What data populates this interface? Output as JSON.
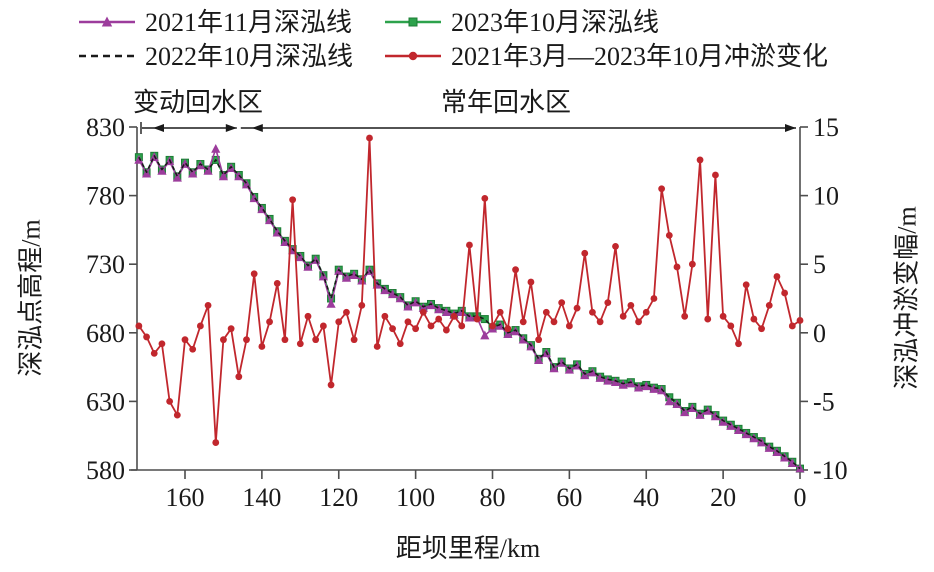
{
  "figure": {
    "background": "#ffffff",
    "text_color": "#1a1a1a",
    "axis_color": "#4d4d4d",
    "zones": {
      "left_label": "变动回水区",
      "right_label": "常年回水区",
      "boundary_km": 146
    },
    "axes": {
      "x": {
        "title": "距坝里程/km",
        "ticks": [
          160,
          140,
          120,
          100,
          80,
          60,
          40,
          20,
          0
        ],
        "range_km": [
          172.5,
          0
        ],
        "reversed": true
      },
      "y_left": {
        "title": "深泓点高程/m",
        "ticks": [
          830,
          780,
          730,
          680,
          630,
          580
        ],
        "range": [
          580,
          830
        ]
      },
      "y_right": {
        "title": "深泓冲淤变幅/m",
        "ticks": [
          15,
          10,
          5,
          0,
          -5,
          -10
        ],
        "range": [
          -10,
          15
        ]
      }
    }
  },
  "chart_data": {
    "type": "line",
    "title": "",
    "xlabel": "距坝里程/km",
    "ylabel_left": "深泓点高程/m",
    "ylabel_right": "深泓冲淤变幅/m",
    "xlim": [
      172.5,
      0
    ],
    "ylim_left": [
      580,
      830
    ],
    "ylim_right": [
      -10,
      15
    ],
    "grid": false,
    "legend_position": "top-left",
    "annotations": [
      "变动回水区",
      "常年回水区"
    ],
    "x": [
      172,
      170,
      168,
      166,
      164,
      162,
      160,
      158,
      156,
      154,
      152,
      150,
      148,
      146,
      144,
      142,
      140,
      138,
      136,
      134,
      132,
      130,
      128,
      126,
      124,
      122,
      120,
      118,
      116,
      114,
      112,
      110,
      108,
      106,
      104,
      102,
      100,
      98,
      96,
      94,
      92,
      90,
      88,
      86,
      84,
      82,
      80,
      78,
      76,
      74,
      72,
      70,
      68,
      66,
      64,
      62,
      60,
      58,
      56,
      54,
      52,
      50,
      48,
      46,
      44,
      42,
      40,
      38,
      36,
      34,
      32,
      30,
      28,
      26,
      24,
      22,
      20,
      18,
      16,
      14,
      12,
      10,
      8,
      6,
      4,
      2,
      0
    ],
    "series": [
      {
        "name": "2023年10月深泓线",
        "axis": "left",
        "color": "#2da24c",
        "marker_edge": "#1c7c35",
        "marker": "square",
        "line": "solid",
        "values": [
          808,
          797,
          809,
          799,
          806,
          794,
          804,
          797,
          803,
          799,
          806,
          795,
          801,
          795,
          789,
          779,
          771,
          763,
          754,
          747,
          741,
          736,
          729,
          734,
          722,
          705,
          726,
          721,
          723,
          719,
          726,
          716,
          712,
          709,
          706,
          700,
          703,
          699,
          701,
          698,
          696,
          694,
          696,
          692,
          692,
          690,
          684,
          686,
          680,
          682,
          676,
          671,
          661,
          666,
          655,
          659,
          654,
          657,
          650,
          652,
          648,
          646,
          645,
          643,
          644,
          641,
          642,
          640,
          639,
          633,
          629,
          623,
          626,
          621,
          624,
          620,
          616,
          613,
          610,
          607,
          604,
          601,
          597,
          594,
          590,
          586,
          581
        ]
      },
      {
        "name": "2021年11月深泓线",
        "axis": "left",
        "color": "#9c3c9c",
        "marker": "triangle",
        "line": "solid",
        "values": [
          806,
          796,
          808,
          798,
          805,
          793,
          803,
          796,
          802,
          798,
          814,
          794,
          800,
          794,
          788,
          778,
          770,
          762,
          753,
          746,
          740,
          735,
          728,
          733,
          721,
          701,
          725,
          720,
          722,
          718,
          725,
          715,
          711,
          708,
          705,
          699,
          702,
          698,
          700,
          697,
          695,
          693,
          695,
          691,
          691,
          678,
          683,
          685,
          679,
          681,
          675,
          670,
          660,
          665,
          654,
          658,
          653,
          656,
          649,
          651,
          647,
          645,
          644,
          642,
          643,
          640,
          641,
          639,
          638,
          630,
          628,
          622,
          625,
          620,
          623,
          619,
          615,
          612,
          609,
          606,
          603,
          600,
          596,
          593,
          589,
          585,
          581
        ]
      },
      {
        "name": "2022年10月深泓线",
        "axis": "left",
        "color": "#1a1a1a",
        "marker": "none",
        "line": "dashed",
        "values": [
          808,
          797,
          809,
          799,
          806,
          794,
          804,
          797,
          803,
          799,
          806,
          795,
          801,
          795,
          789,
          779,
          771,
          763,
          754,
          747,
          741,
          736,
          729,
          734,
          722,
          705,
          726,
          721,
          723,
          719,
          726,
          716,
          712,
          709,
          706,
          700,
          703,
          699,
          701,
          698,
          696,
          694,
          696,
          692,
          692,
          690,
          684,
          686,
          680,
          682,
          676,
          671,
          661,
          666,
          655,
          659,
          654,
          657,
          650,
          652,
          648,
          646,
          645,
          643,
          644,
          641,
          642,
          640,
          639,
          633,
          629,
          623,
          626,
          621,
          624,
          620,
          616,
          613,
          610,
          607,
          604,
          601,
          597,
          594,
          590,
          586,
          581
        ]
      },
      {
        "name": "2021年3月—2023年10月冲淤变化",
        "axis": "right",
        "color": "#c1272d",
        "marker": "circle",
        "line": "solid",
        "values": [
          0.5,
          -0.3,
          -1.5,
          -0.8,
          -5,
          -6,
          -0.5,
          -1.2,
          0.5,
          2,
          -8,
          -0.5,
          0.3,
          -3.2,
          -0.5,
          4.3,
          -1,
          0.8,
          3.6,
          -0.5,
          9.7,
          -0.8,
          1.2,
          -0.5,
          0.5,
          -3.8,
          0.8,
          1.5,
          -0.5,
          2,
          14.2,
          -1,
          1.2,
          0.3,
          -0.8,
          0.8,
          0.3,
          1.5,
          0.5,
          1,
          0.2,
          1.2,
          0.5,
          6.4,
          1,
          9.8,
          0.5,
          1.5,
          0.3,
          4.6,
          0.8,
          3.7,
          -0.5,
          1.5,
          0.8,
          2.2,
          0.5,
          1.8,
          5.8,
          1.5,
          0.8,
          2.2,
          6.3,
          1.2,
          2,
          0.8,
          1.5,
          2.5,
          10.5,
          7.1,
          4.8,
          1.2,
          5,
          12.6,
          1,
          11.5,
          1.2,
          0.5,
          -0.8,
          3.5,
          1,
          0.3,
          2,
          4.1,
          2.9,
          0.5,
          0.9
        ]
      }
    ],
    "legend_order": [
      1,
      0,
      2,
      3
    ]
  }
}
